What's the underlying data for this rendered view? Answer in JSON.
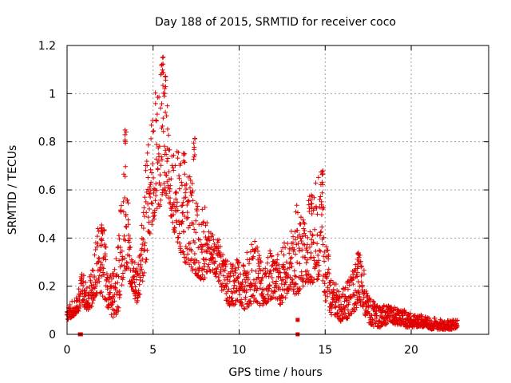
{
  "chart_data": {
    "type": "scatter",
    "title": "Day 188 of 2015, SRMTID for receiver coco",
    "xlabel": "GPS time / hours",
    "ylabel": "SRMTID / TECUs",
    "xlim": [
      0,
      24.5
    ],
    "ylim": [
      0,
      1.2
    ],
    "xticks": [
      "0",
      "5",
      "10",
      "15",
      "20"
    ],
    "xtick_values": [
      0,
      5,
      10,
      15,
      20
    ],
    "yticks": [
      "0",
      "0.2",
      "0.4",
      "0.6",
      "0.8",
      "1",
      "1.2"
    ],
    "ytick_values": [
      0,
      0.2,
      0.4,
      0.6,
      0.8,
      1.0,
      1.2
    ],
    "grid": true,
    "marker": "plus",
    "series_color": "#e00000",
    "series": [
      {
        "name": "SRMTID",
        "envelope": {
          "x": [
            0,
            0.3,
            0.6,
            0.9,
            1.2,
            1.5,
            1.8,
            2.1,
            2.4,
            2.7,
            3.0,
            3.2,
            3.4,
            3.6,
            3.8,
            4.0,
            4.3,
            4.6,
            4.9,
            5.2,
            5.5,
            5.7,
            5.9,
            6.1,
            6.4,
            6.7,
            7.0,
            7.3,
            7.6,
            7.9,
            8.2,
            8.5,
            8.8,
            9.1,
            9.4,
            9.7,
            10.0,
            10.3,
            10.6,
            10.9,
            11.2,
            11.5,
            11.8,
            12.1,
            12.4,
            12.7,
            13.0,
            13.3,
            13.6,
            13.9,
            14.2,
            14.5,
            14.8,
            15.0,
            15.3,
            15.6,
            15.9,
            16.2,
            16.5,
            16.8,
            17.0,
            17.3,
            17.6,
            17.9,
            18.2,
            18.5,
            18.8,
            19.1,
            19.4,
            19.7,
            20.0,
            20.3,
            20.6,
            20.9,
            21.2,
            21.5,
            21.8,
            22.1,
            22.4,
            22.7
          ],
          "low": [
            0.06,
            0.07,
            0.09,
            0.12,
            0.1,
            0.12,
            0.18,
            0.15,
            0.1,
            0.06,
            0.1,
            0.2,
            0.28,
            0.24,
            0.16,
            0.12,
            0.18,
            0.3,
            0.45,
            0.5,
            0.55,
            0.58,
            0.55,
            0.45,
            0.38,
            0.32,
            0.28,
            0.26,
            0.24,
            0.22,
            0.26,
            0.26,
            0.22,
            0.16,
            0.12,
            0.12,
            0.14,
            0.1,
            0.12,
            0.14,
            0.12,
            0.12,
            0.14,
            0.15,
            0.12,
            0.15,
            0.18,
            0.16,
            0.18,
            0.22,
            0.2,
            0.22,
            0.24,
            0.14,
            0.08,
            0.08,
            0.05,
            0.06,
            0.08,
            0.1,
            0.12,
            0.08,
            0.04,
            0.03,
            0.03,
            0.04,
            0.05,
            0.04,
            0.04,
            0.03,
            0.03,
            0.03,
            0.03,
            0.03,
            0.02,
            0.02,
            0.02,
            0.02,
            0.02,
            0.03
          ],
          "high": [
            0.1,
            0.14,
            0.16,
            0.28,
            0.22,
            0.3,
            0.45,
            0.47,
            0.3,
            0.25,
            0.4,
            0.62,
            0.85,
            0.45,
            0.3,
            0.3,
            0.45,
            0.75,
            0.9,
            1.05,
            1.17,
            1.08,
            0.88,
            0.75,
            0.78,
            0.7,
            0.65,
            0.84,
            0.55,
            0.6,
            0.45,
            0.42,
            0.4,
            0.32,
            0.3,
            0.3,
            0.32,
            0.32,
            0.38,
            0.4,
            0.32,
            0.28,
            0.35,
            0.32,
            0.35,
            0.4,
            0.42,
            0.55,
            0.5,
            0.52,
            0.6,
            0.64,
            0.68,
            0.45,
            0.28,
            0.22,
            0.18,
            0.22,
            0.25,
            0.3,
            0.35,
            0.25,
            0.15,
            0.13,
            0.12,
            0.12,
            0.12,
            0.11,
            0.1,
            0.1,
            0.09,
            0.08,
            0.08,
            0.07,
            0.07,
            0.07,
            0.06,
            0.06,
            0.06,
            0.06
          ]
        },
        "spikes": [
          {
            "x": 3.4,
            "y": 0.85
          },
          {
            "x": 5.55,
            "y": 1.16
          },
          {
            "x": 5.7,
            "y": 1.08
          },
          {
            "x": 7.4,
            "y": 0.82
          },
          {
            "x": 14.85,
            "y": 0.68
          },
          {
            "x": 14.2,
            "y": 0.58
          },
          {
            "x": 6.8,
            "y": 0.77
          },
          {
            "x": 2.0,
            "y": 0.46
          },
          {
            "x": 16.9,
            "y": 0.35
          }
        ],
        "baseline_points": [
          {
            "x": 0.75,
            "y": 0.0
          },
          {
            "x": 0.8,
            "y": 0.0
          },
          {
            "x": 13.4,
            "y": 0.0
          },
          {
            "x": 13.4,
            "y": 0.06
          }
        ]
      }
    ]
  }
}
